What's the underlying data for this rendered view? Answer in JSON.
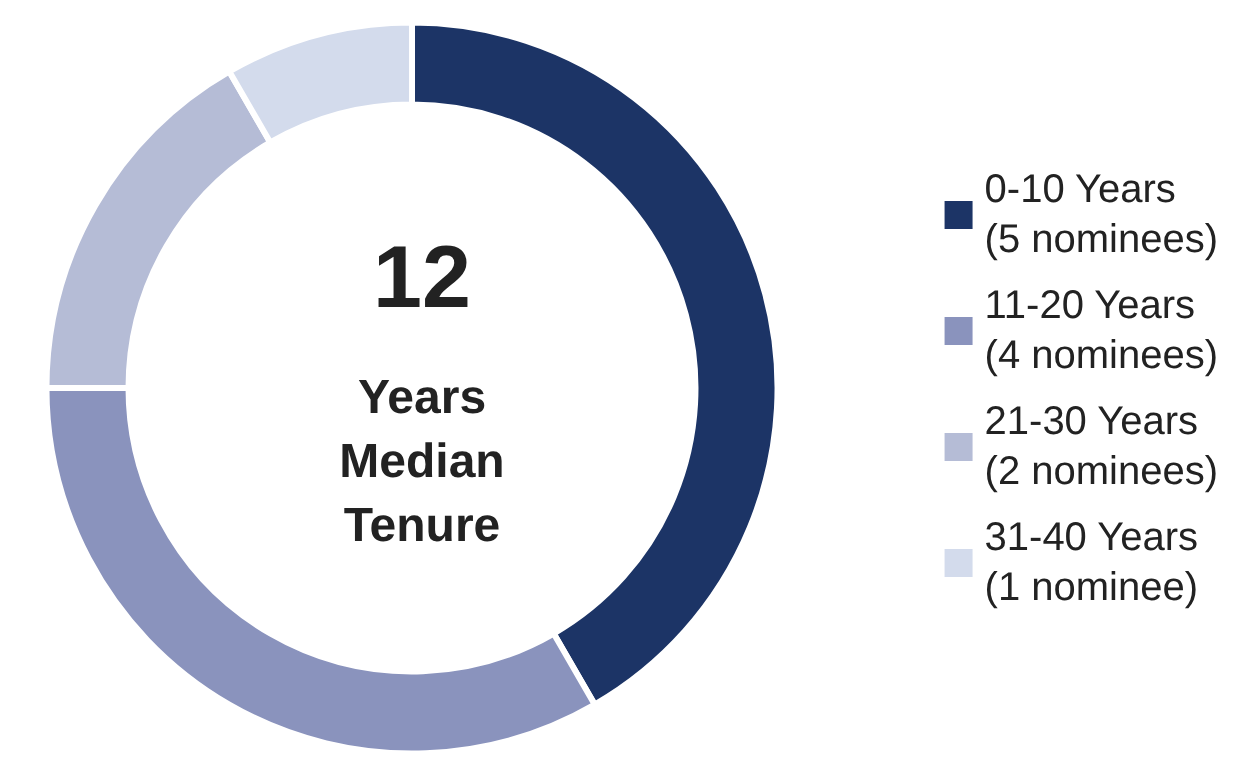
{
  "chart_data": {
    "type": "donut",
    "categories": [
      "0-10 Years\n(5 nominees)",
      "11-20 Years\n(4 nominees)",
      "21-30 Years\n(2 nominees)",
      "31-40 Years\n(1 nominee)"
    ],
    "values": [
      41.67,
      33.33,
      16.67,
      8.33
    ],
    "colors": [
      "#1c3466",
      "#8a93bd",
      "#b5bcd6",
      "#d3dbec"
    ],
    "annotations": [
      "12",
      "Years\nMedian\nTenure"
    ],
    "legend": "right"
  }
}
